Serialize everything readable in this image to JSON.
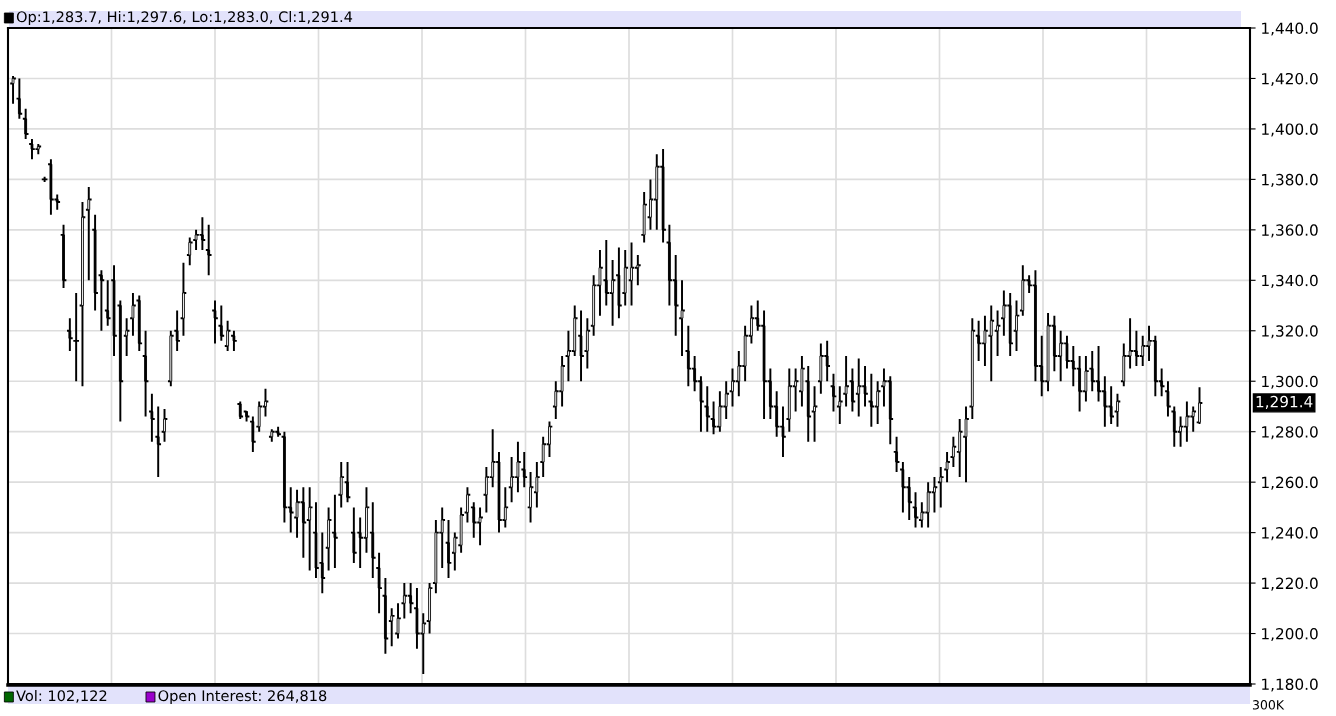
{
  "chart_data": {
    "type": "candlestick",
    "ylim": [
      1180,
      1440
    ],
    "yticks": [
      {
        "value": 1180,
        "label": "1,180.0"
      },
      {
        "value": 1200,
        "label": "1,200.0"
      },
      {
        "value": 1220,
        "label": "1,220.0"
      },
      {
        "value": 1240,
        "label": "1,240.0"
      },
      {
        "value": 1260,
        "label": "1,260.0"
      },
      {
        "value": 1280,
        "label": "1,280.0"
      },
      {
        "value": 1300,
        "label": "1,300.0"
      },
      {
        "value": 1320,
        "label": "1,320.0"
      },
      {
        "value": 1340,
        "label": "1,340.0"
      },
      {
        "value": 1360,
        "label": "1,360.0"
      },
      {
        "value": 1380,
        "label": "1,380.0"
      },
      {
        "value": 1400,
        "label": "1,400.0"
      },
      {
        "value": 1420,
        "label": "1,420.0"
      },
      {
        "value": 1440,
        "label": "1,440.0"
      }
    ],
    "grid": true,
    "tick_labels": "y",
    "annotations": [
      "Op:1,283.7, Hi:1,297.6, Lo:1,283.0, Cl:1,291.4",
      "Vol: 102,122",
      "Open Interest: 264,818",
      "300K",
      "1,291.4"
    ],
    "ohlc": [
      [
        1418,
        1421,
        1410,
        1420
      ],
      [
        1412,
        1420,
        1404,
        1406
      ],
      [
        1404,
        1408,
        1396,
        1398
      ],
      [
        1394,
        1396,
        1388,
        1392
      ],
      [
        1392,
        1394,
        1390,
        1393
      ],
      [
        1380,
        1381,
        1379,
        1380
      ],
      [
        1386,
        1388,
        1366,
        1372
      ],
      [
        1372,
        1374,
        1368,
        1371
      ],
      [
        1358,
        1362,
        1337,
        1340
      ],
      [
        1320,
        1325,
        1312,
        1317
      ],
      [
        1316,
        1335,
        1300,
        1316
      ],
      [
        1330,
        1371,
        1298,
        1365
      ],
      [
        1368,
        1377,
        1340,
        1372
      ],
      [
        1360,
        1366,
        1328,
        1335
      ],
      [
        1342,
        1344,
        1320,
        1340
      ],
      [
        1328,
        1340,
        1322,
        1325
      ],
      [
        1340,
        1346,
        1310,
        1318
      ],
      [
        1330,
        1332,
        1284,
        1300
      ],
      [
        1318,
        1325,
        1310,
        1320
      ],
      [
        1325,
        1335,
        1318,
        1330
      ],
      [
        1332,
        1334,
        1312,
        1315
      ],
      [
        1310,
        1320,
        1286,
        1300
      ],
      [
        1288,
        1295,
        1276,
        1285
      ],
      [
        1278,
        1290,
        1262,
        1275
      ],
      [
        1280,
        1289,
        1276,
        1285
      ],
      [
        1300,
        1320,
        1298,
        1318
      ],
      [
        1320,
        1328,
        1312,
        1316
      ],
      [
        1325,
        1347,
        1318,
        1335
      ],
      [
        1350,
        1357,
        1346,
        1355
      ],
      [
        1356,
        1360,
        1352,
        1358
      ],
      [
        1358,
        1365,
        1352,
        1356
      ],
      [
        1352,
        1362,
        1342,
        1350
      ],
      [
        1328,
        1332,
        1315,
        1325
      ],
      [
        1322,
        1330,
        1316,
        1318
      ],
      [
        1314,
        1324,
        1312,
        1320
      ],
      [
        1318,
        1320,
        1312,
        1316
      ],
      [
        1291,
        1292,
        1285,
        1286
      ],
      [
        1288,
        1288,
        1284,
        1286
      ],
      [
        1284,
        1286,
        1272,
        1276
      ],
      [
        1282,
        1292,
        1280,
        1290
      ],
      [
        1290,
        1297,
        1286,
        1292
      ],
      [
        1278,
        1281,
        1276,
        1280
      ],
      [
        1280,
        1282,
        1278,
        1279
      ],
      [
        1278,
        1280,
        1244,
        1250
      ],
      [
        1250,
        1258,
        1240,
        1248
      ],
      [
        1246,
        1257,
        1238,
        1252
      ],
      [
        1252,
        1258,
        1230,
        1244
      ],
      [
        1245,
        1258,
        1225,
        1250
      ],
      [
        1240,
        1252,
        1222,
        1226
      ],
      [
        1228,
        1240,
        1216,
        1222
      ],
      [
        1234,
        1250,
        1225,
        1245
      ],
      [
        1240,
        1255,
        1226,
        1238
      ],
      [
        1255,
        1268,
        1250,
        1262
      ],
      [
        1260,
        1268,
        1252,
        1254
      ],
      [
        1240,
        1250,
        1228,
        1232
      ],
      [
        1240,
        1246,
        1226,
        1238
      ],
      [
        1238,
        1258,
        1232,
        1250
      ],
      [
        1240,
        1252,
        1222,
        1230
      ],
      [
        1226,
        1232,
        1208,
        1218
      ],
      [
        1215,
        1222,
        1192,
        1198
      ],
      [
        1205,
        1210,
        1195,
        1207
      ],
      [
        1200,
        1212,
        1198,
        1206
      ],
      [
        1212,
        1220,
        1206,
        1215
      ],
      [
        1215,
        1220,
        1208,
        1212
      ],
      [
        1210,
        1218,
        1194,
        1200
      ],
      [
        1200,
        1208,
        1184,
        1204
      ],
      [
        1205,
        1220,
        1200,
        1218
      ],
      [
        1220,
        1245,
        1216,
        1240
      ],
      [
        1240,
        1250,
        1226,
        1245
      ],
      [
        1236,
        1245,
        1222,
        1228
      ],
      [
        1232,
        1240,
        1225,
        1238
      ],
      [
        1235,
        1250,
        1232,
        1247
      ],
      [
        1248,
        1258,
        1244,
        1255
      ],
      [
        1250,
        1252,
        1238,
        1244
      ],
      [
        1244,
        1250,
        1235,
        1246
      ],
      [
        1255,
        1266,
        1248,
        1262
      ],
      [
        1262,
        1281,
        1258,
        1268
      ],
      [
        1268,
        1272,
        1240,
        1245
      ],
      [
        1245,
        1258,
        1242,
        1250
      ],
      [
        1258,
        1270,
        1252,
        1262
      ],
      [
        1262,
        1276,
        1256,
        1268
      ],
      [
        1265,
        1272,
        1258,
        1262
      ],
      [
        1250,
        1264,
        1244,
        1258
      ],
      [
        1256,
        1268,
        1250,
        1262
      ],
      [
        1268,
        1278,
        1262,
        1275
      ],
      [
        1275,
        1284,
        1270,
        1282
      ],
      [
        1290,
        1300,
        1285,
        1296
      ],
      [
        1296,
        1310,
        1290,
        1306
      ],
      [
        1310,
        1320,
        1300,
        1312
      ],
      [
        1312,
        1330,
        1310,
        1325
      ],
      [
        1318,
        1328,
        1300,
        1310
      ],
      [
        1312,
        1325,
        1305,
        1320
      ],
      [
        1322,
        1342,
        1318,
        1338
      ],
      [
        1338,
        1352,
        1326,
        1345
      ],
      [
        1340,
        1356,
        1330,
        1335
      ],
      [
        1335,
        1348,
        1322,
        1340
      ],
      [
        1342,
        1353,
        1325,
        1330
      ],
      [
        1335,
        1352,
        1330,
        1345
      ],
      [
        1340,
        1355,
        1330,
        1345
      ],
      [
        1345,
        1350,
        1338,
        1346
      ],
      [
        1358,
        1375,
        1355,
        1370
      ],
      [
        1365,
        1380,
        1360,
        1372
      ],
      [
        1372,
        1390,
        1360,
        1385
      ],
      [
        1385,
        1392,
        1355,
        1360
      ],
      [
        1355,
        1362,
        1330,
        1340
      ],
      [
        1340,
        1350,
        1318,
        1330
      ],
      [
        1325,
        1340,
        1310,
        1328
      ],
      [
        1312,
        1322,
        1298,
        1305
      ],
      [
        1305,
        1310,
        1296,
        1300
      ],
      [
        1300,
        1302,
        1280,
        1292
      ],
      [
        1290,
        1298,
        1280,
        1286
      ],
      [
        1285,
        1292,
        1279,
        1282
      ],
      [
        1282,
        1296,
        1280,
        1290
      ],
      [
        1290,
        1300,
        1285,
        1295
      ],
      [
        1296,
        1305,
        1290,
        1300
      ],
      [
        1300,
        1312,
        1294,
        1306
      ],
      [
        1306,
        1322,
        1300,
        1318
      ],
      [
        1318,
        1330,
        1315,
        1325
      ],
      [
        1325,
        1332,
        1320,
        1322
      ],
      [
        1322,
        1328,
        1285,
        1300
      ],
      [
        1300,
        1305,
        1285,
        1290
      ],
      [
        1290,
        1296,
        1278,
        1282
      ],
      [
        1282,
        1290,
        1270,
        1278
      ],
      [
        1285,
        1305,
        1280,
        1298
      ],
      [
        1298,
        1305,
        1288,
        1300
      ],
      [
        1296,
        1310,
        1290,
        1305
      ],
      [
        1300,
        1306,
        1276,
        1286
      ],
      [
        1288,
        1298,
        1276,
        1290
      ],
      [
        1300,
        1315,
        1295,
        1310
      ],
      [
        1310,
        1316,
        1300,
        1306
      ],
      [
        1298,
        1303,
        1288,
        1294
      ],
      [
        1290,
        1298,
        1283,
        1292
      ],
      [
        1295,
        1310,
        1290,
        1298
      ],
      [
        1300,
        1305,
        1288,
        1292
      ],
      [
        1295,
        1309,
        1286,
        1298
      ],
      [
        1298,
        1306,
        1290,
        1295
      ],
      [
        1292,
        1303,
        1282,
        1290
      ],
      [
        1290,
        1300,
        1283,
        1296
      ],
      [
        1298,
        1305,
        1290,
        1300
      ],
      [
        1300,
        1302,
        1275,
        1285
      ],
      [
        1272,
        1278,
        1264,
        1268
      ],
      [
        1265,
        1268,
        1248,
        1258
      ],
      [
        1258,
        1262,
        1245,
        1252
      ],
      [
        1250,
        1256,
        1242,
        1246
      ],
      [
        1245,
        1252,
        1242,
        1248
      ],
      [
        1248,
        1260,
        1242,
        1256
      ],
      [
        1256,
        1262,
        1248,
        1258
      ],
      [
        1260,
        1266,
        1250,
        1262
      ],
      [
        1265,
        1272,
        1260,
        1268
      ],
      [
        1270,
        1278,
        1266,
        1274
      ],
      [
        1272,
        1285,
        1262,
        1280
      ],
      [
        1278,
        1290,
        1260,
        1285
      ],
      [
        1290,
        1325,
        1285,
        1320
      ],
      [
        1318,
        1324,
        1308,
        1315
      ],
      [
        1315,
        1326,
        1306,
        1320
      ],
      [
        1318,
        1330,
        1300,
        1324
      ],
      [
        1320,
        1328,
        1310,
        1322
      ],
      [
        1325,
        1336,
        1318,
        1330
      ],
      [
        1330,
        1335,
        1310,
        1315
      ],
      [
        1320,
        1332,
        1312,
        1326
      ],
      [
        1328,
        1346,
        1326,
        1340
      ],
      [
        1340,
        1342,
        1335,
        1338
      ],
      [
        1338,
        1344,
        1300,
        1306
      ],
      [
        1306,
        1318,
        1294,
        1300
      ],
      [
        1300,
        1327,
        1296,
        1322
      ],
      [
        1322,
        1326,
        1304,
        1310
      ],
      [
        1310,
        1320,
        1300,
        1315
      ],
      [
        1315,
        1318,
        1305,
        1308
      ],
      [
        1308,
        1314,
        1298,
        1305
      ],
      [
        1305,
        1310,
        1288,
        1296
      ],
      [
        1296,
        1310,
        1292,
        1304
      ],
      [
        1305,
        1312,
        1296,
        1300
      ],
      [
        1300,
        1314,
        1292,
        1296
      ],
      [
        1296,
        1302,
        1282,
        1290
      ],
      [
        1290,
        1298,
        1283,
        1286
      ],
      [
        1288,
        1295,
        1282,
        1292
      ],
      [
        1300,
        1315,
        1298,
        1310
      ],
      [
        1310,
        1325,
        1305,
        1312
      ],
      [
        1312,
        1320,
        1306,
        1310
      ],
      [
        1310,
        1318,
        1306,
        1314
      ],
      [
        1314,
        1322,
        1308,
        1316
      ],
      [
        1316,
        1318,
        1294,
        1300
      ],
      [
        1300,
        1305,
        1294,
        1298
      ],
      [
        1296,
        1300,
        1286,
        1290
      ],
      [
        1288,
        1290,
        1274,
        1280
      ],
      [
        1280,
        1286,
        1274,
        1282
      ],
      [
        1282,
        1292,
        1276,
        1286
      ],
      [
        1286,
        1290,
        1280,
        1288
      ],
      [
        1283.7,
        1297.6,
        1283.0,
        1291.4
      ]
    ]
  }
}
